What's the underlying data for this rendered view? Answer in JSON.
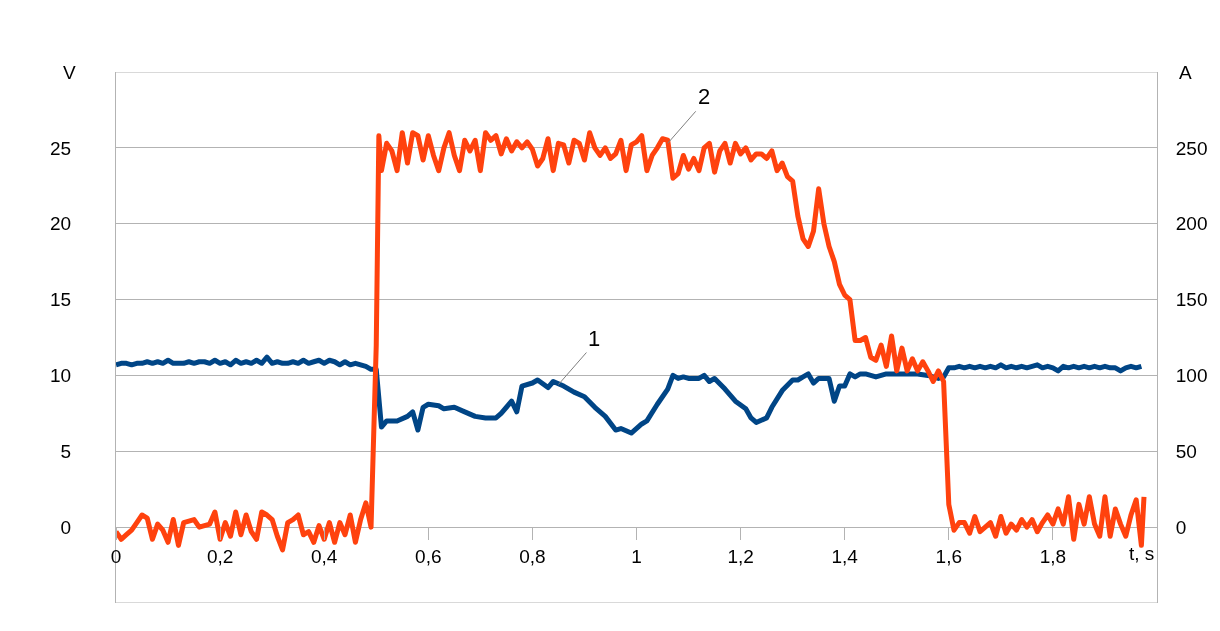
{
  "chart_data": {
    "type": "line",
    "xlabel": "t, s",
    "ylabel": "V",
    "y2label": "A",
    "xlim": [
      0,
      2
    ],
    "xticks": [
      0,
      {
        "value": 0.2,
        "label": "0,2"
      },
      {
        "value": 0.4,
        "label": "0,4"
      },
      {
        "value": 0.6,
        "label": "0,6"
      },
      {
        "value": 0.8,
        "label": "0,8"
      },
      1,
      {
        "value": 1.2,
        "label": "1,2"
      },
      {
        "value": 1.4,
        "label": "1,4"
      },
      {
        "value": 1.6,
        "label": "1,6"
      },
      {
        "value": 1.8,
        "label": "1,8"
      }
    ],
    "ylim": [
      -5,
      30
    ],
    "yticks": [
      {
        "value": -5,
        "label": null
      },
      0,
      5,
      10,
      15,
      20,
      25,
      {
        "value": 30,
        "label": null
      }
    ],
    "y2lim": [
      -50,
      300
    ],
    "y2ticks": [
      0,
      50,
      100,
      150,
      200,
      250
    ],
    "grid": "y",
    "marker": "none",
    "line_style": "solid",
    "annotations": [
      {
        "text": "1",
        "x": 0.85,
        "y": 9.4
      },
      {
        "text": "2",
        "x": 1.06,
        "y": 25.3
      }
    ],
    "series": [
      {
        "color": "#004586",
        "x": [
          0,
          0.01,
          0.02,
          0.03,
          0.04,
          0.05,
          0.06,
          0.07,
          0.08,
          0.09,
          0.1,
          0.11,
          0.12,
          0.13,
          0.14,
          0.15,
          0.16,
          0.17,
          0.18,
          0.19,
          0.2,
          0.21,
          0.22,
          0.23,
          0.24,
          0.25,
          0.26,
          0.27,
          0.28,
          0.29,
          0.3,
          0.31,
          0.32,
          0.33,
          0.34,
          0.35,
          0.36,
          0.37,
          0.38,
          0.39,
          0.4,
          0.41,
          0.42,
          0.43,
          0.44,
          0.45,
          0.46,
          0.47,
          0.48,
          0.49,
          0.5,
          0.51,
          0.52,
          0.54,
          0.56,
          0.57,
          0.58,
          0.59,
          0.6,
          0.62,
          0.63,
          0.65,
          0.67,
          0.69,
          0.71,
          0.73,
          0.74,
          0.76,
          0.77,
          0.78,
          0.8,
          0.81,
          0.83,
          0.84,
          0.86,
          0.88,
          0.9,
          0.92,
          0.94,
          0.96,
          0.97,
          0.99,
          1.01,
          1.02,
          1.04,
          1.06,
          1.07,
          1.08,
          1.09,
          1.1,
          1.12,
          1.13,
          1.14,
          1.15,
          1.17,
          1.19,
          1.21,
          1.22,
          1.23,
          1.25,
          1.26,
          1.28,
          1.3,
          1.31,
          1.32,
          1.33,
          1.34,
          1.35,
          1.37,
          1.38,
          1.39,
          1.4,
          1.41,
          1.42,
          1.43,
          1.44,
          1.46,
          1.48,
          1.5,
          1.52,
          1.54,
          1.56,
          1.58,
          1.59,
          1.6,
          1.61,
          1.62,
          1.63,
          1.64,
          1.65,
          1.66,
          1.67,
          1.68,
          1.69,
          1.7,
          1.71,
          1.72,
          1.73,
          1.74,
          1.75,
          1.76,
          1.77,
          1.78,
          1.79,
          1.8,
          1.81,
          1.82,
          1.83,
          1.84,
          1.85,
          1.86,
          1.87,
          1.88,
          1.89,
          1.9,
          1.91,
          1.92,
          1.93,
          1.94,
          1.95,
          1.96,
          1.97
        ],
        "values": [
          10.7,
          10.8,
          10.8,
          10.7,
          10.8,
          10.8,
          10.9,
          10.8,
          10.9,
          10.8,
          11,
          10.8,
          10.8,
          10.8,
          10.9,
          10.8,
          10.9,
          10.9,
          10.8,
          11,
          10.8,
          10.9,
          10.7,
          11,
          10.8,
          10.9,
          10.8,
          11,
          10.8,
          11.2,
          10.8,
          10.9,
          10.8,
          10.8,
          10.9,
          10.8,
          11,
          10.8,
          10.9,
          11,
          10.8,
          11,
          10.9,
          10.7,
          10.9,
          10.7,
          10.8,
          10.7,
          10.6,
          10.4,
          10.4,
          6.6,
          7,
          7,
          7.3,
          7.6,
          6.4,
          7.9,
          8.1,
          8,
          7.8,
          7.9,
          7.6,
          7.3,
          7.2,
          7.2,
          7.5,
          8.3,
          7.6,
          9.3,
          9.5,
          9.7,
          9.2,
          9.6,
          9.3,
          8.9,
          8.6,
          7.9,
          7.3,
          6.4,
          6.5,
          6.2,
          6.8,
          7,
          8.1,
          9.1,
          10,
          9.8,
          9.9,
          9.8,
          9.8,
          10,
          9.6,
          9.8,
          9.1,
          8.3,
          7.8,
          7.2,
          6.9,
          7.2,
          7.9,
          9,
          9.7,
          9.7,
          9.9,
          10.1,
          9.5,
          9.8,
          9.8,
          8.3,
          9.3,
          9.3,
          10.1,
          9.9,
          10.1,
          10.1,
          9.9,
          10.1,
          10.1,
          10.1,
          10.1,
          10,
          9.8,
          9.9,
          10.5,
          10.5,
          10.6,
          10.5,
          10.6,
          10.5,
          10.6,
          10.5,
          10.6,
          10.5,
          10.7,
          10.5,
          10.6,
          10.5,
          10.6,
          10.5,
          10.6,
          10.7,
          10.5,
          10.6,
          10.5,
          10.3,
          10.6,
          10.5,
          10.6,
          10.5,
          10.6,
          10.5,
          10.6,
          10.5,
          10.6,
          10.5,
          10.5,
          10.3,
          10.5,
          10.6,
          10.5,
          10.6
        ]
      },
      {
        "color": "#ff420e",
        "axis": "y2",
        "x": [
          0,
          0.01,
          0.02,
          0.03,
          0.04,
          0.05,
          0.06,
          0.07,
          0.08,
          0.09,
          0.1,
          0.11,
          0.12,
          0.13,
          0.14,
          0.15,
          0.16,
          0.17,
          0.18,
          0.19,
          0.2,
          0.21,
          0.22,
          0.23,
          0.24,
          0.25,
          0.26,
          0.27,
          0.28,
          0.29,
          0.3,
          0.31,
          0.32,
          0.33,
          0.34,
          0.35,
          0.36,
          0.37,
          0.38,
          0.39,
          0.4,
          0.41,
          0.42,
          0.43,
          0.44,
          0.45,
          0.46,
          0.47,
          0.48,
          0.49,
          0.5,
          0.505,
          0.51,
          0.52,
          0.53,
          0.54,
          0.55,
          0.56,
          0.57,
          0.58,
          0.59,
          0.6,
          0.61,
          0.62,
          0.63,
          0.64,
          0.65,
          0.66,
          0.67,
          0.68,
          0.69,
          0.7,
          0.71,
          0.72,
          0.73,
          0.74,
          0.75,
          0.76,
          0.77,
          0.78,
          0.79,
          0.8,
          0.81,
          0.82,
          0.83,
          0.84,
          0.85,
          0.86,
          0.87,
          0.88,
          0.89,
          0.9,
          0.91,
          0.92,
          0.93,
          0.94,
          0.95,
          0.96,
          0.97,
          0.98,
          0.99,
          1,
          1.01,
          1.02,
          1.03,
          1.04,
          1.05,
          1.06,
          1.07,
          1.08,
          1.09,
          1.1,
          1.11,
          1.12,
          1.13,
          1.14,
          1.15,
          1.16,
          1.17,
          1.18,
          1.19,
          1.2,
          1.21,
          1.22,
          1.23,
          1.24,
          1.25,
          1.26,
          1.27,
          1.28,
          1.29,
          1.3,
          1.31,
          1.32,
          1.33,
          1.34,
          1.35,
          1.36,
          1.37,
          1.38,
          1.39,
          1.4,
          1.41,
          1.42,
          1.43,
          1.44,
          1.45,
          1.46,
          1.47,
          1.48,
          1.49,
          1.5,
          1.51,
          1.52,
          1.53,
          1.54,
          1.55,
          1.56,
          1.57,
          1.58,
          1.59,
          1.6,
          1.61,
          1.62,
          1.63,
          1.64,
          1.65,
          1.66,
          1.67,
          1.68,
          1.69,
          1.7,
          1.71,
          1.72,
          1.73,
          1.74,
          1.75,
          1.76,
          1.77,
          1.78,
          1.79,
          1.8,
          1.81,
          1.82,
          1.83,
          1.84,
          1.85,
          1.86,
          1.87,
          1.88,
          1.89,
          1.9,
          1.91,
          1.92,
          1.93,
          1.94,
          1.95,
          1.96,
          1.97,
          1.975
        ],
        "values": [
          -3,
          -8,
          -5,
          -2,
          3,
          8,
          6,
          -8,
          2,
          -2,
          -10,
          5,
          -12,
          3,
          4,
          5,
          0,
          1,
          2,
          10,
          -8,
          3,
          -6,
          10,
          -5,
          8,
          -3,
          -8,
          10,
          8,
          5,
          -6,
          -15,
          3,
          5,
          8,
          -5,
          -3,
          -10,
          1,
          -8,
          3,
          -10,
          3,
          -5,
          8,
          -10,
          5,
          16,
          0,
          120,
          258,
          235,
          253,
          248,
          235,
          260,
          240,
          260,
          258,
          242,
          258,
          245,
          235,
          250,
          260,
          245,
          235,
          255,
          248,
          255,
          235,
          260,
          255,
          258,
          246,
          256,
          248,
          254,
          250,
          254,
          249,
          238,
          243,
          256,
          235,
          253,
          252,
          240,
          255,
          253,
          242,
          260,
          250,
          245,
          250,
          243,
          246,
          255,
          235,
          252,
          254,
          258,
          235,
          245,
          250,
          256,
          255,
          230,
          233,
          245,
          236,
          243,
          235,
          250,
          253,
          234,
          248,
          253,
          240,
          253,
          246,
          250,
          242,
          246,
          246,
          243,
          248,
          235,
          240,
          231,
          228,
          205,
          190,
          185,
          195,
          223,
          200,
          185,
          175,
          160,
          153,
          150,
          123,
          123,
          125,
          112,
          110,
          120,
          106,
          126,
          103,
          118,
          103,
          111,
          103,
          109,
          103,
          96,
          103,
          96,
          15,
          -2,
          3,
          3,
          -4,
          7,
          -3,
          0,
          3,
          -6,
          7,
          -4,
          2,
          -2,
          5,
          0,
          5,
          -3,
          3,
          8,
          2,
          12,
          2,
          20,
          -8,
          15,
          2,
          20,
          2,
          -6,
          20,
          -6,
          12,
          2,
          -6,
          8,
          18,
          -12,
          20
        ]
      }
    ]
  }
}
